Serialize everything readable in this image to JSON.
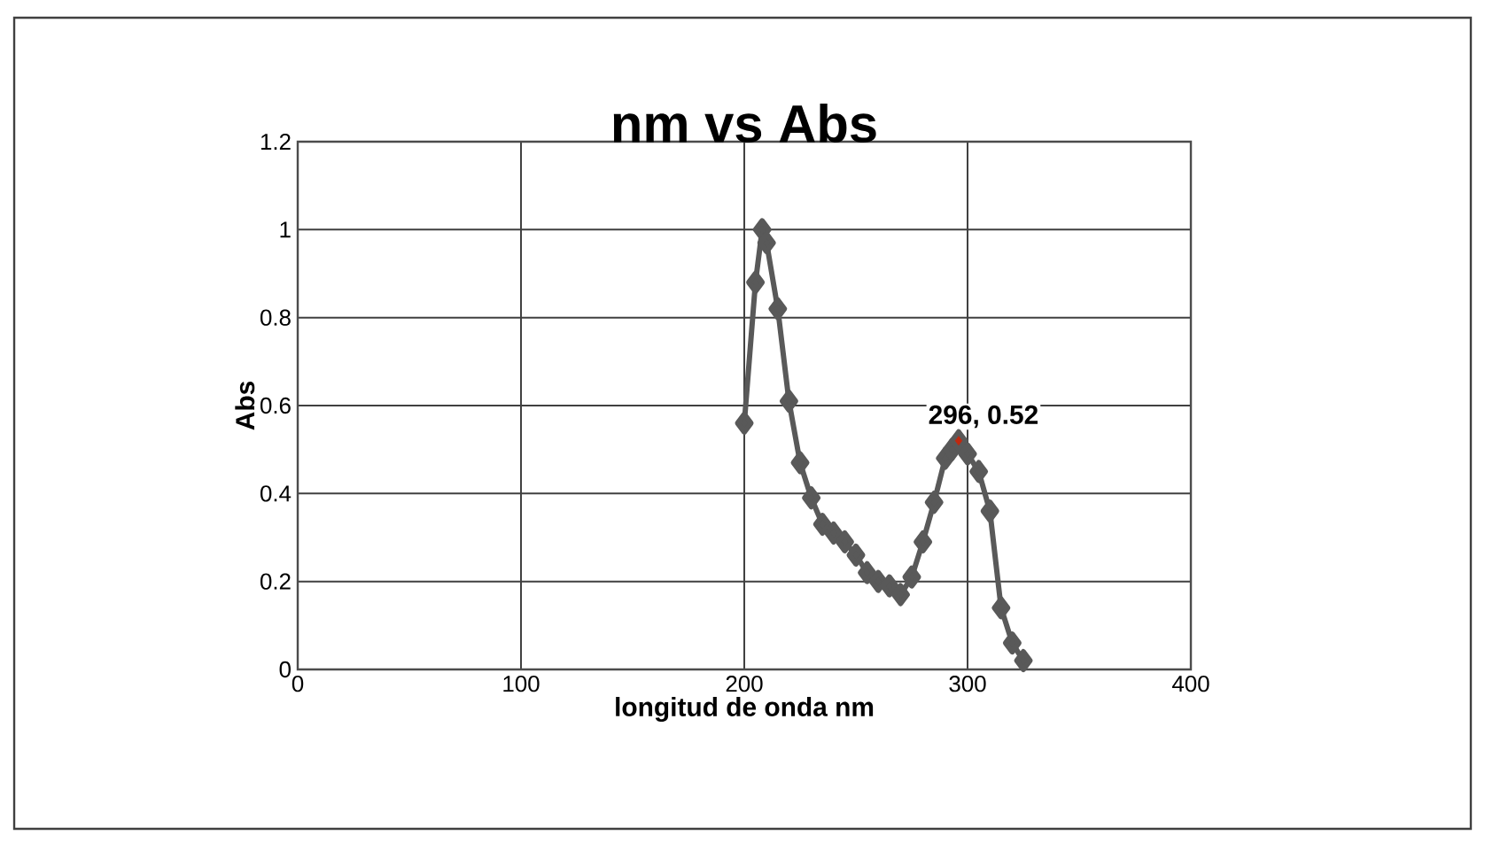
{
  "chart_data": {
    "type": "line",
    "title": "nm vs Abs",
    "xlabel": "longitud de onda nm",
    "ylabel": "Abs",
    "xlim": [
      0,
      400
    ],
    "xticks": [
      0,
      100,
      200,
      300,
      400
    ],
    "ylim": [
      0,
      1.2
    ],
    "yticks": [
      0,
      0.2,
      0.4,
      0.6,
      0.8,
      1,
      1.2
    ],
    "grid": true,
    "marker": "diamond",
    "line_style": "solid",
    "series": [
      {
        "color": "#595959",
        "x": [
          200,
          205,
          208,
          210,
          215,
          220,
          225,
          230,
          235,
          240,
          245,
          250,
          255,
          260,
          265,
          270,
          275,
          280,
          285,
          290,
          293,
          296,
          300,
          305,
          310,
          315,
          320,
          325
        ],
        "values": [
          0.56,
          0.88,
          1.0,
          0.97,
          0.82,
          0.61,
          0.47,
          0.39,
          0.33,
          0.31,
          0.29,
          0.26,
          0.22,
          0.2,
          0.19,
          0.17,
          0.21,
          0.29,
          0.38,
          0.48,
          0.5,
          0.52,
          0.49,
          0.45,
          0.36,
          0.14,
          0.06,
          0.02
        ]
      },
      {
        "type": "scatter",
        "color": "#c0280f",
        "x": [
          296
        ],
        "values": [
          0.52
        ]
      }
    ],
    "annotations": [
      {
        "text": "296,  0.52",
        "x": 296,
        "y": 0.52
      }
    ]
  }
}
